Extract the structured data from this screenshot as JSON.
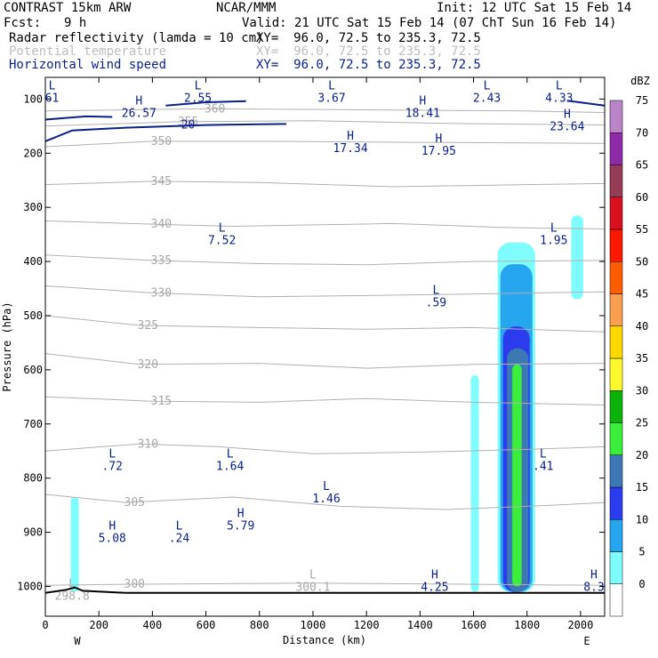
{
  "header": {
    "model": "CONTRAST 15km ARW",
    "center": "NCAR/MMM",
    "init": "Init: 12 UTC Sat 15 Feb 14",
    "fcst_label": "Fcst:",
    "fcst_value": "9 h",
    "valid": "Valid: 21 UTC Sat 15 Feb 14 (07 ChT Sun 16 Feb 14)",
    "fields": [
      {
        "name": "Radar reflectivity (lamda = 10 cm)",
        "xy": "XY=  96.0, 72.5 to 235.3, 72.5",
        "color": "#000000"
      },
      {
        "name": "Potential temperature",
        "xy": "XY=  96.0, 72.5 to 235.3, 72.5",
        "color": "#bdbdbd"
      },
      {
        "name": "Horizontal wind speed",
        "xy": "XY=  96.0, 72.5 to 235.3, 72.5",
        "color": "#0a1f8a"
      }
    ]
  },
  "chart_data": {
    "type": "cross-section",
    "xlabel": "Distance (km)",
    "ylabel": "Pressure (hPa)",
    "xlim": [
      0,
      2090
    ],
    "ylim": [
      1055,
      60
    ],
    "x_ticks": [
      0,
      200,
      400,
      600,
      800,
      1000,
      1200,
      1400,
      1600,
      1800,
      2000
    ],
    "y_ticks": [
      100,
      200,
      300,
      400,
      500,
      600,
      700,
      800,
      900,
      1000
    ],
    "x_end_labels": {
      "left": "W",
      "right": "E"
    },
    "colorbar": {
      "unit": "dBZ",
      "levels": [
        "0",
        "5",
        "10",
        "15",
        "20",
        "25",
        "30",
        "35",
        "40",
        "45",
        "50",
        "55",
        "60",
        "65",
        "70",
        "75"
      ],
      "colors": [
        "#ffffff",
        "#7ffdfd",
        "#27a6f0",
        "#2b3cef",
        "#3c78b4",
        "#3cee3c",
        "#0ab20a",
        "#fdf92c",
        "#fdd700",
        "#f8a050",
        "#fd5d00",
        "#fd1800",
        "#d9101f",
        "#953c56",
        "#8c2aa8",
        "#b985c6"
      ]
    },
    "theta_contours": [
      {
        "value": 300,
        "label": "300",
        "points": [
          [
            0,
            998
          ],
          [
            300,
            996
          ],
          [
            1000,
            994
          ],
          [
            1600,
            996
          ],
          [
            2090,
            998
          ]
        ]
      },
      {
        "value": 305,
        "label": "305",
        "points": [
          [
            0,
            830
          ],
          [
            300,
            845
          ],
          [
            700,
            835
          ],
          [
            1100,
            852
          ],
          [
            1500,
            858
          ],
          [
            1900,
            850
          ],
          [
            2090,
            845
          ]
        ]
      },
      {
        "value": 310,
        "label": "310",
        "points": [
          [
            0,
            750
          ],
          [
            350,
            737
          ],
          [
            650,
            742
          ],
          [
            1000,
            755
          ],
          [
            1400,
            752
          ],
          [
            1800,
            747
          ],
          [
            2090,
            742
          ]
        ]
      },
      {
        "value": 315,
        "label": "315",
        "points": [
          [
            0,
            650
          ],
          [
            400,
            658
          ],
          [
            800,
            660
          ],
          [
            1200,
            653
          ],
          [
            1600,
            660
          ],
          [
            2090,
            665
          ]
        ]
      },
      {
        "value": 320,
        "label": "320",
        "points": [
          [
            0,
            570
          ],
          [
            350,
            590
          ],
          [
            800,
            588
          ],
          [
            1200,
            597
          ],
          [
            1600,
            590
          ],
          [
            2090,
            588
          ]
        ]
      },
      {
        "value": 325,
        "label": "325",
        "points": [
          [
            0,
            500
          ],
          [
            350,
            518
          ],
          [
            800,
            522
          ],
          [
            1200,
            525
          ],
          [
            1600,
            522
          ],
          [
            2090,
            530
          ]
        ]
      },
      {
        "value": 330,
        "label": "330",
        "points": [
          [
            0,
            445
          ],
          [
            400,
            458
          ],
          [
            800,
            465
          ],
          [
            1200,
            463
          ],
          [
            1600,
            460
          ],
          [
            2090,
            456
          ]
        ]
      },
      {
        "value": 335,
        "label": "335",
        "points": [
          [
            0,
            388
          ],
          [
            400,
            398
          ],
          [
            800,
            404
          ],
          [
            1200,
            406
          ],
          [
            1600,
            400
          ],
          [
            2090,
            398
          ]
        ]
      },
      {
        "value": 340,
        "label": "340",
        "points": [
          [
            0,
            325
          ],
          [
            400,
            331
          ],
          [
            700,
            335
          ],
          [
            1300,
            330
          ],
          [
            1700,
            337
          ],
          [
            2090,
            340
          ]
        ]
      },
      {
        "value": 345,
        "label": "345",
        "points": [
          [
            0,
            258
          ],
          [
            400,
            252
          ],
          [
            800,
            254
          ],
          [
            1300,
            262
          ],
          [
            1800,
            258
          ],
          [
            2090,
            256
          ]
        ]
      },
      {
        "value": 350,
        "label": "350",
        "points": [
          [
            0,
            188
          ],
          [
            400,
            178
          ],
          [
            800,
            178
          ],
          [
            1400,
            180
          ],
          [
            2090,
            182
          ]
        ]
      },
      {
        "value": 355,
        "label": "355",
        "points": [
          [
            0,
            150
          ],
          [
            500,
            142
          ],
          [
            1000,
            140
          ],
          [
            1500,
            145
          ],
          [
            2090,
            148
          ]
        ]
      },
      {
        "value": 360,
        "label": "360",
        "points": [
          [
            0,
            122
          ],
          [
            600,
            118
          ],
          [
            1200,
            120
          ],
          [
            1800,
            122
          ],
          [
            2090,
            125
          ]
        ]
      }
    ],
    "wind_contours": [
      {
        "value": 20,
        "label": "20",
        "points": [
          [
            0,
            178
          ],
          [
            100,
            158
          ],
          [
            300,
            153
          ],
          [
            600,
            148
          ],
          [
            900,
            146
          ]
        ]
      },
      {
        "value": 20,
        "label": "20",
        "points": [
          [
            0,
            138
          ],
          [
            150,
            132
          ],
          [
            250,
            133
          ]
        ]
      },
      {
        "value": 20,
        "label": "20",
        "points": [
          [
            450,
            112
          ],
          [
            600,
            106
          ],
          [
            750,
            104
          ]
        ]
      },
      {
        "value": 20,
        "label": "20",
        "points": [
          [
            1950,
            103
          ],
          [
            2090,
            112
          ]
        ]
      }
    ],
    "reflectivity_cells": [
      {
        "level": "5",
        "x": [
          1590,
          1620
        ],
        "p": [
          610,
          1010
        ]
      },
      {
        "level": "5",
        "x": [
          95,
          125
        ],
        "p": [
          835,
          1010
        ]
      },
      {
        "level": "5",
        "x": [
          1965,
          2010
        ],
        "p": [
          315,
          470
        ]
      },
      {
        "level": "5",
        "x": [
          1690,
          1830
        ],
        "p": [
          365,
          1010
        ]
      },
      {
        "level": "10",
        "x": [
          1700,
          1820
        ],
        "p": [
          405,
          1010
        ]
      },
      {
        "level": "15",
        "x": [
          1710,
          1810
        ],
        "p": [
          520,
          1010
        ]
      },
      {
        "level": "20",
        "x": [
          1725,
          1805
        ],
        "p": [
          560,
          1010
        ]
      },
      {
        "level": "25",
        "x": [
          1745,
          1780
        ],
        "p": [
          590,
          1000
        ]
      }
    ],
    "extrema": [
      {
        "kind": "L",
        "value": "61",
        "x": 25,
        "p": 82
      },
      {
        "kind": "H",
        "value": "26.57",
        "x": 350,
        "p": 110
      },
      {
        "kind": "L",
        "value": "2.55",
        "x": 570,
        "p": 82
      },
      {
        "kind": "L",
        "value": "3.67",
        "x": 1070,
        "p": 82
      },
      {
        "kind": "H",
        "value": "18.41",
        "x": 1410,
        "p": 110
      },
      {
        "kind": "L",
        "value": "2.43",
        "x": 1650,
        "p": 82
      },
      {
        "kind": "L",
        "value": "4.33",
        "x": 1920,
        "p": 82
      },
      {
        "kind": "H",
        "value": "23.64",
        "x": 1950,
        "p": 135
      },
      {
        "kind": "H",
        "value": "17.34",
        "x": 1140,
        "p": 175
      },
      {
        "kind": "H",
        "value": "17.95",
        "x": 1470,
        "p": 180
      },
      {
        "kind": "L",
        "value": "7.52",
        "x": 660,
        "p": 345
      },
      {
        "kind": "L",
        "value": "1.95",
        "x": 1900,
        "p": 345
      },
      {
        "kind": "L",
        "value": ".59",
        "x": 1460,
        "p": 460
      },
      {
        "kind": "L",
        "value": ".72",
        "x": 250,
        "p": 762
      },
      {
        "kind": "L",
        "value": "1.64",
        "x": 690,
        "p": 762
      },
      {
        "kind": "L",
        "value": "1.46",
        "x": 1050,
        "p": 822
      },
      {
        "kind": "L",
        "value": ".41",
        "x": 1860,
        "p": 762
      },
      {
        "kind": "H",
        "value": "5.08",
        "x": 250,
        "p": 895
      },
      {
        "kind": "L",
        "value": ".24",
        "x": 500,
        "p": 895
      },
      {
        "kind": "H",
        "value": "5.79",
        "x": 730,
        "p": 872
      },
      {
        "kind": "L",
        "value": "300.1",
        "x": 1000,
        "p": 985
      },
      {
        "kind": "H",
        "value": "4.25",
        "x": 1455,
        "p": 985
      },
      {
        "kind": "H",
        "value": "8.3",
        "x": 2050,
        "p": 985
      },
      {
        "kind": "L",
        "value": "298.8",
        "x": 100,
        "p": 1002
      }
    ],
    "terrain": [
      [
        0,
        1012
      ],
      [
        80,
        1006
      ],
      [
        110,
        1002
      ],
      [
        140,
        1008
      ],
      [
        300,
        1012
      ],
      [
        2090,
        1012
      ]
    ]
  }
}
